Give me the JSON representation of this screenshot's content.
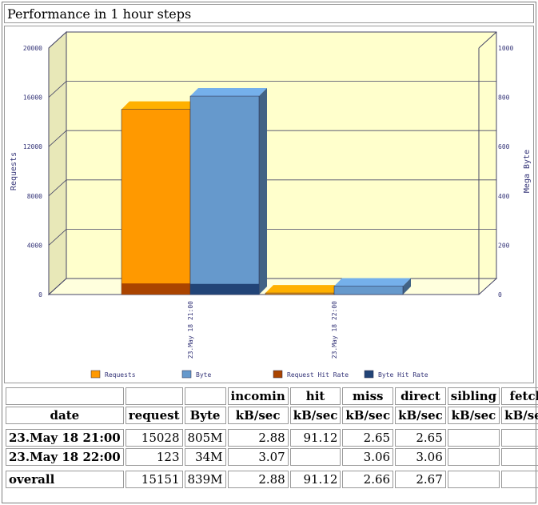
{
  "title": "Performance in 1 hour steps",
  "chart_data": {
    "type": "bar",
    "categories": [
      "23.May 18 21:00",
      "23.May 18 22:00"
    ],
    "y_left": {
      "label": "Requests",
      "ticks": [
        0,
        4000,
        8000,
        12000,
        16000,
        20000
      ],
      "ylim": [
        0,
        20000
      ]
    },
    "y_right": {
      "label": "Mega Byte",
      "ticks": [
        0,
        200,
        400,
        600,
        800,
        1000
      ],
      "ylim": [
        0,
        1000
      ]
    },
    "series": [
      {
        "name": "Requests",
        "axis": "left",
        "values": [
          15028,
          123
        ],
        "color": "#ff9900"
      },
      {
        "name": "Byte",
        "axis": "right",
        "values": [
          805,
          34
        ],
        "color": "#6699cc"
      },
      {
        "name": "Request Hit Rate",
        "axis": "left",
        "values": [
          900,
          0
        ],
        "color": "#aa4400"
      },
      {
        "name": "Byte Hit Rate",
        "axis": "right",
        "values": [
          43,
          0
        ],
        "color": "#224477"
      }
    ],
    "grid": true,
    "legend_position": "bottom"
  },
  "table": {
    "header1": [
      "",
      "",
      "",
      "incomin",
      "hit",
      "miss",
      "direct",
      "sibling",
      "fetch"
    ],
    "header2": [
      "date",
      "request",
      "Byte",
      "kB/sec",
      "kB/sec",
      "kB/sec",
      "kB/sec",
      "kB/sec",
      "kB/sec"
    ],
    "rows": [
      [
        "23.May 18 21:00",
        "15028",
        "805M",
        "2.88",
        "91.12",
        "2.65",
        "2.65",
        "",
        ""
      ],
      [
        "23.May 18 22:00",
        "123",
        "34M",
        "3.07",
        "",
        "3.06",
        "3.06",
        "",
        ""
      ]
    ],
    "total": [
      "overall",
      "15151",
      "839M",
      "2.88",
      "91.12",
      "2.66",
      "2.67",
      "",
      ""
    ]
  }
}
